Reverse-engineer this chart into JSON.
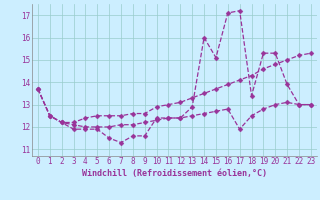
{
  "xlabel": "Windchill (Refroidissement éolien,°C)",
  "background_color": "#cceeff",
  "line_color": "#993399",
  "grid_color": "#99cccc",
  "xlim": [
    -0.5,
    23.5
  ],
  "ylim": [
    10.7,
    17.5
  ],
  "yticks": [
    11,
    12,
    13,
    14,
    15,
    16,
    17
  ],
  "xticks": [
    0,
    1,
    2,
    3,
    4,
    5,
    6,
    7,
    8,
    9,
    10,
    11,
    12,
    13,
    14,
    15,
    16,
    17,
    18,
    19,
    20,
    21,
    22,
    23
  ],
  "series": [
    [
      13.7,
      12.5,
      12.2,
      11.9,
      11.9,
      11.9,
      11.5,
      11.3,
      11.6,
      11.6,
      12.4,
      12.4,
      12.4,
      12.9,
      16.0,
      15.1,
      17.1,
      17.2,
      13.4,
      15.3,
      15.3,
      13.9,
      13.0,
      13.0
    ],
    [
      13.7,
      12.5,
      12.2,
      12.2,
      12.4,
      12.5,
      12.5,
      12.5,
      12.6,
      12.6,
      12.9,
      13.0,
      13.1,
      13.3,
      13.5,
      13.7,
      13.9,
      14.1,
      14.3,
      14.6,
      14.8,
      15.0,
      15.2,
      15.3
    ],
    [
      13.7,
      12.5,
      12.2,
      12.1,
      12.0,
      12.0,
      12.0,
      12.1,
      12.1,
      12.2,
      12.3,
      12.4,
      12.4,
      12.5,
      12.6,
      12.7,
      12.8,
      11.9,
      12.5,
      12.8,
      13.0,
      13.1,
      13.0,
      13.0
    ]
  ],
  "tick_fontsize": 5.5,
  "xlabel_fontsize": 6.0,
  "marker_size": 2.5,
  "line_width": 0.9
}
